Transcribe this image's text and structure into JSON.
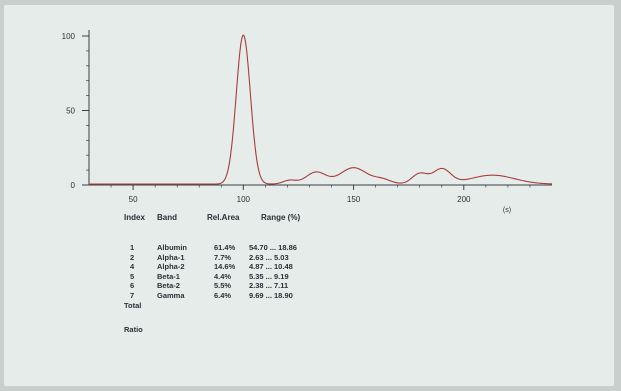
{
  "chart_data": {
    "type": "line",
    "xlim": [
      30,
      240
    ],
    "ylim": [
      0,
      100
    ],
    "x_ticks": [
      50,
      100,
      150,
      200
    ],
    "y_ticks": [
      0,
      50,
      100
    ],
    "x_unit_label": "(s)",
    "line_color": "#a83b3b",
    "axis_color": "#3a3f44",
    "peaks": [
      {
        "x": 100,
        "y": 100,
        "w": 3.2
      },
      {
        "x": 121,
        "y": 2.5,
        "w": 3
      },
      {
        "x": 133,
        "y": 8,
        "w": 4.5
      },
      {
        "x": 150,
        "y": 11,
        "w": 6
      },
      {
        "x": 163,
        "y": 3,
        "w": 4
      },
      {
        "x": 180,
        "y": 7,
        "w": 3.5
      },
      {
        "x": 190,
        "y": 10,
        "w": 4
      },
      {
        "x": 213,
        "y": 6,
        "w": 10
      }
    ]
  },
  "table": {
    "headers": {
      "index": "Index",
      "band": "Band",
      "area": "Rel.Area",
      "range": "Range (%)"
    },
    "rows": [
      {
        "index": "1",
        "band": "Albumin",
        "area": "61.4%",
        "range": "54.70 ... 18.86"
      },
      {
        "index": "2",
        "band": "Alpha-1",
        "area": "7.7%",
        "range": "2.63 ... 5.03"
      },
      {
        "index": "4",
        "band": "Alpha-2",
        "area": "14.6%",
        "range": "4.87 ... 10.48"
      },
      {
        "index": "5",
        "band": "Beta-1",
        "area": "4.4%",
        "range": "5.35 ... 9.19"
      },
      {
        "index": "6",
        "band": "Beta-2",
        "area": "5.5%",
        "range": "2.38 ... 7.11"
      },
      {
        "index": "7",
        "band": "Gamma",
        "area": "6.4%",
        "range": "9.69 ... 18.90"
      }
    ],
    "total_label": "Total",
    "ratio_label": "Ratio"
  }
}
